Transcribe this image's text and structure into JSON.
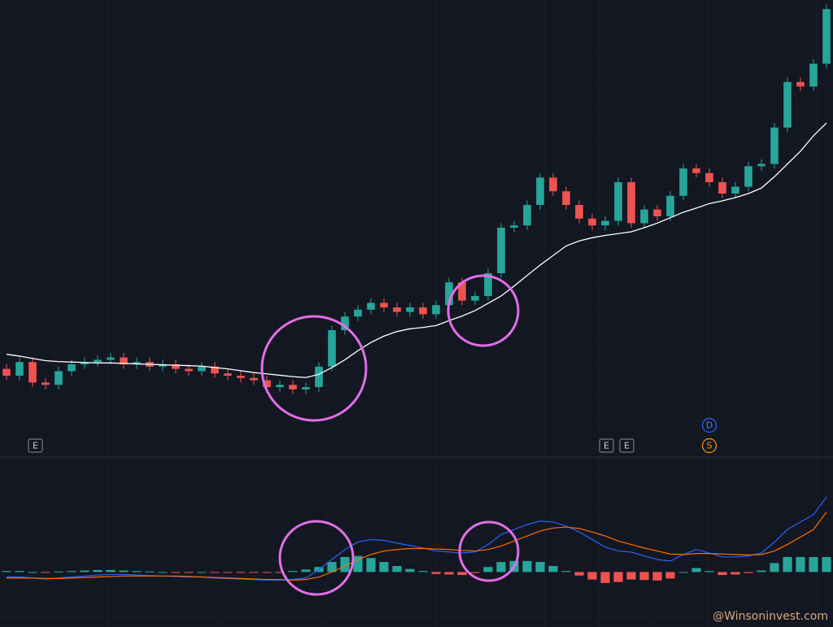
{
  "chart_data": {
    "type": "candlestick",
    "open": [
      19,
      17.5,
      20.5,
      16,
      15.5,
      18.5,
      20,
      20.5,
      21,
      21.5,
      20,
      20.5,
      19.5,
      20,
      19,
      18.5,
      19.5,
      18,
      17.5,
      17,
      16.5,
      15,
      15.5,
      14.5,
      15,
      19.5,
      27.5,
      30.5,
      32,
      33.5,
      32.5,
      31.5,
      32.5,
      31,
      33,
      38,
      34,
      35,
      40,
      50,
      50.5,
      55,
      61,
      58,
      55,
      52,
      50.5,
      51.5,
      60,
      51,
      54,
      52.5,
      57,
      63,
      62,
      60,
      57.5,
      59,
      63.5,
      64,
      72,
      82,
      81,
      86
    ],
    "high": [
      20,
      21.5,
      21.5,
      17,
      19.5,
      21,
      21.5,
      22,
      22.5,
      22.5,
      21.5,
      21.5,
      21,
      21,
      20,
      20.5,
      20.5,
      19,
      18.5,
      18,
      17.5,
      16.5,
      16.5,
      16,
      20.5,
      28.5,
      31.5,
      33,
      34.5,
      34.5,
      33.5,
      33.5,
      33.5,
      34,
      39,
      39,
      36,
      41,
      51,
      51.5,
      56,
      62,
      62,
      59,
      56,
      53,
      52.5,
      61,
      61,
      55,
      55,
      58,
      64,
      64,
      63,
      61,
      60,
      64.5,
      65,
      73,
      83,
      83,
      87,
      99
    ],
    "low": [
      16.5,
      16.5,
      15,
      14.5,
      14.5,
      17.5,
      19,
      19.5,
      20,
      19,
      19,
      18.5,
      18.5,
      18,
      17.5,
      17.5,
      17,
      16.5,
      16,
      15.5,
      14,
      14,
      13.5,
      13.5,
      14,
      18.5,
      26.5,
      29.5,
      31,
      31.5,
      30.5,
      30.5,
      30,
      30,
      32,
      33,
      33,
      34,
      39,
      49,
      49.5,
      54,
      57,
      54,
      51,
      49.5,
      49.5,
      50.5,
      50,
      50,
      51.5,
      51.5,
      56,
      61,
      59,
      56.5,
      56.5,
      58,
      62.5,
      63,
      71,
      80,
      80,
      85
    ],
    "close": [
      17.5,
      20.5,
      16,
      15.5,
      18.5,
      20,
      20.5,
      21,
      21.5,
      20,
      20.5,
      19.5,
      20,
      19,
      18.5,
      19.5,
      18,
      17.5,
      17,
      16.5,
      15,
      15.5,
      14.5,
      15,
      19.5,
      27.5,
      30.5,
      32,
      33.5,
      32.5,
      31.5,
      32.5,
      31,
      33,
      38,
      34,
      35,
      40,
      50,
      50.5,
      55,
      61,
      58,
      55,
      52,
      50.5,
      51.5,
      60,
      51,
      54,
      52.5,
      57,
      63,
      62,
      60,
      57.5,
      59,
      63.5,
      64,
      72,
      82,
      81,
      86,
      98
    ],
    "up_color": "#26a69a",
    "down_color": "#ef5350",
    "ylim": [
      0,
      100
    ],
    "ma": {
      "color": "#ffffff",
      "values": [
        22.2,
        21.8,
        21.3,
        20.8,
        20.6,
        20.5,
        20.4,
        20.3,
        20.3,
        20.2,
        20.1,
        20,
        19.9,
        19.8,
        19.7,
        19.6,
        19.3,
        19,
        18.6,
        18.2,
        17.9,
        17.6,
        17.3,
        17.1,
        17.8,
        19.3,
        21,
        23,
        24.8,
        26.2,
        27.2,
        27.8,
        28.1,
        28.5,
        29.6,
        30.6,
        31.8,
        33.4,
        35,
        37.2,
        39.5,
        41.8,
        43.9,
        46,
        47.1,
        47.8,
        48.3,
        48.7,
        49.1,
        50,
        51,
        52.2,
        53.4,
        54.3,
        55.3,
        55.9,
        56.6,
        57.5,
        58.7,
        61.2,
        64,
        66.8,
        70.2,
        73
      ]
    },
    "macd": {
      "ylim": [
        -1.1,
        2.3
      ],
      "macd": {
        "color": "#2962ff",
        "values": [
          -0.1,
          -0.1,
          -0.12,
          -0.14,
          -0.12,
          -0.1,
          -0.08,
          -0.06,
          -0.05,
          -0.05,
          -0.06,
          -0.07,
          -0.08,
          -0.09,
          -0.1,
          -0.1,
          -0.12,
          -0.13,
          -0.14,
          -0.15,
          -0.16,
          -0.16,
          -0.15,
          -0.12,
          0.05,
          0.25,
          0.45,
          0.6,
          0.65,
          0.63,
          0.58,
          0.53,
          0.48,
          0.42,
          0.4,
          0.38,
          0.4,
          0.55,
          0.75,
          0.85,
          0.95,
          1.02,
          1.0,
          0.92,
          0.8,
          0.65,
          0.5,
          0.42,
          0.4,
          0.32,
          0.25,
          0.22,
          0.35,
          0.45,
          0.38,
          0.3,
          0.3,
          0.32,
          0.38,
          0.6,
          0.85,
          1.0,
          1.15,
          1.5
        ]
      },
      "signal": {
        "color": "#ff6d00",
        "values": [
          -0.12,
          -0.12,
          -0.12,
          -0.13,
          -0.13,
          -0.12,
          -0.11,
          -0.1,
          -0.09,
          -0.08,
          -0.08,
          -0.08,
          -0.08,
          -0.08,
          -0.09,
          -0.1,
          -0.11,
          -0.12,
          -0.13,
          -0.14,
          -0.15,
          -0.15,
          -0.16,
          -0.15,
          -0.1,
          0.0,
          0.12,
          0.25,
          0.35,
          0.42,
          0.45,
          0.47,
          0.47,
          0.46,
          0.45,
          0.43,
          0.42,
          0.45,
          0.52,
          0.62,
          0.72,
          0.82,
          0.88,
          0.9,
          0.87,
          0.8,
          0.72,
          0.62,
          0.55,
          0.48,
          0.42,
          0.36,
          0.35,
          0.37,
          0.37,
          0.36,
          0.35,
          0.34,
          0.35,
          0.42,
          0.55,
          0.7,
          0.85,
          1.2
        ]
      },
      "hist": {
        "up_color": "#26a69a",
        "down_color": "#ef5350",
        "values": [
          0.02,
          0.02,
          0.0,
          -0.01,
          0.01,
          0.02,
          0.03,
          0.04,
          0.04,
          0.03,
          0.02,
          0.01,
          0.0,
          -0.01,
          -0.01,
          0.0,
          -0.01,
          -0.01,
          -0.01,
          -0.01,
          -0.01,
          -0.01,
          0.02,
          0.05,
          0.1,
          0.2,
          0.3,
          0.32,
          0.28,
          0.2,
          0.12,
          0.06,
          0.02,
          -0.04,
          -0.05,
          -0.06,
          -0.02,
          0.1,
          0.2,
          0.22,
          0.22,
          0.2,
          0.12,
          0.02,
          -0.07,
          -0.15,
          -0.22,
          -0.2,
          -0.15,
          -0.16,
          -0.17,
          -0.13,
          0.0,
          0.08,
          0.02,
          -0.06,
          -0.05,
          -0.02,
          0.03,
          0.18,
          0.3,
          0.3,
          0.3,
          0.3
        ]
      }
    }
  },
  "markers": [
    "E",
    "E",
    "E"
  ],
  "badges": [
    "D",
    "S"
  ],
  "watermark": "@Winsoninvest.com"
}
